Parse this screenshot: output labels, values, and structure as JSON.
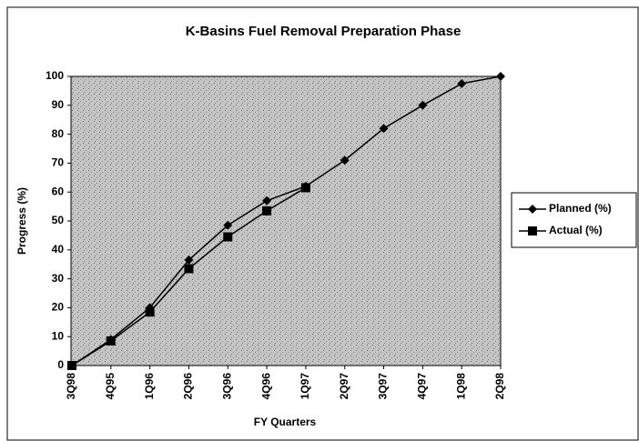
{
  "chart_data": {
    "type": "line",
    "title": "K-Basins Fuel Removal Preparation Phase",
    "x_label": "FY Quarters",
    "y_label": "Progress (%)",
    "categories": [
      "3Q98",
      "4Q95",
      "1Q96",
      "2Q96",
      "3Q96",
      "4Q96",
      "1Q97",
      "2Q97",
      "3Q97",
      "4Q97",
      "1Q98",
      "2Q98"
    ],
    "series": [
      {
        "name": "Planned (%)",
        "color": "#000000",
        "marker": "diamond",
        "values": [
          0,
          9,
          20,
          36.5,
          48.5,
          57,
          62,
          71,
          82,
          90,
          97.5,
          100
        ]
      },
      {
        "name": "Actual (%)",
        "color": "#000000",
        "marker": "square",
        "values": [
          0,
          8.5,
          18.5,
          33.5,
          44.5,
          53.5,
          61.5,
          null,
          null,
          null,
          null,
          null
        ]
      }
    ],
    "ylim": [
      0,
      100
    ],
    "yticks": [
      0,
      10,
      20,
      30,
      40,
      50,
      60,
      70,
      80,
      90,
      100
    ],
    "legend": "right"
  }
}
